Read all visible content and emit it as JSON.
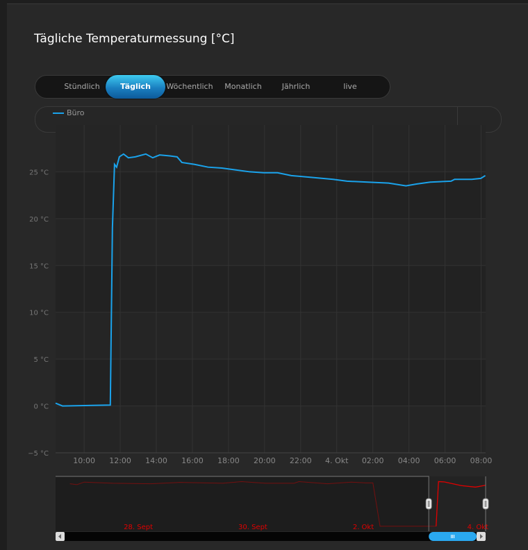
{
  "title": "Tägliche Temperaturmessung [°C]",
  "range_buttons": [
    {
      "label": "Stündlich"
    },
    {
      "label": "Täglich",
      "selected": true
    },
    {
      "label": "Wöchentlich"
    },
    {
      "label": "Monatlich"
    },
    {
      "label": "Jährlich"
    },
    {
      "label": "live"
    }
  ],
  "colors": {
    "series": "#1aa3ec",
    "navigator": "#e00000",
    "accent": "#1a7fc0"
  },
  "chart_data": {
    "type": "line",
    "title": "Tägliche Temperaturmessung [°C]",
    "legend": {
      "entries": [
        "Büro"
      ],
      "placement": "top-left"
    },
    "grid": true,
    "x_ticks": [
      "10:00",
      "12:00",
      "14:00",
      "16:00",
      "18:00",
      "20:00",
      "22:00",
      "4. Okt",
      "02:00",
      "04:00",
      "06:00",
      "08:00"
    ],
    "y_ticks": [
      "−5 °C",
      "0 °C",
      "5 °C",
      "10 °C",
      "15 °C",
      "20 °C",
      "25 °C"
    ],
    "ylim": [
      -5,
      30
    ],
    "xlim": [
      "3. Okt 08:25",
      "4. Okt 08:15"
    ],
    "series": [
      {
        "name": "Büro",
        "points": [
          [
            "3. Okt 08:25",
            0.3
          ],
          [
            "3. Okt 08:48",
            0.0
          ],
          [
            "3. Okt 11:27",
            0.1
          ],
          [
            "3. Okt 11:34",
            19
          ],
          [
            "3. Okt 11:41",
            25.8
          ],
          [
            "3. Okt 11:48",
            25.5
          ],
          [
            "3. Okt 11:57",
            26.6
          ],
          [
            "3. Okt 12:11",
            26.9
          ],
          [
            "3. Okt 12:27",
            26.5
          ],
          [
            "3. Okt 12:50",
            26.6
          ],
          [
            "3. Okt 13:25",
            26.9
          ],
          [
            "3. Okt 13:48",
            26.5
          ],
          [
            "3. Okt 14:11",
            26.8
          ],
          [
            "3. Okt 14:45",
            26.7
          ],
          [
            "3. Okt 15:09",
            26.6
          ],
          [
            "3. Okt 15:25",
            26.0
          ],
          [
            "3. Okt 16:06",
            25.8
          ],
          [
            "3. Okt 16:52",
            25.5
          ],
          [
            "3. Okt 17:38",
            25.4
          ],
          [
            "3. Okt 18:25",
            25.2
          ],
          [
            "3. Okt 19:11",
            25.0
          ],
          [
            "3. Okt 19:57",
            24.9
          ],
          [
            "3. Okt 20:43",
            24.9
          ],
          [
            "3. Okt 21:29",
            24.6
          ],
          [
            "3. Okt 22:38",
            24.4
          ],
          [
            "3. Okt 23:48",
            24.2
          ],
          [
            "4. Okt 00:34",
            24.0
          ],
          [
            "4. Okt 01:43",
            23.9
          ],
          [
            "4. Okt 02:52",
            23.8
          ],
          [
            "4. Okt 03:50",
            23.5
          ],
          [
            "4. Okt 04:25",
            23.7
          ],
          [
            "4. Okt 05:11",
            23.9
          ],
          [
            "4. Okt 06:20",
            24.0
          ],
          [
            "4. Okt 06:32",
            24.2
          ],
          [
            "4. Okt 07:29",
            24.2
          ],
          [
            "4. Okt 07:59",
            24.3
          ],
          [
            "4. Okt 08:14",
            24.6
          ]
        ]
      }
    ],
    "navigator": {
      "x_ticks": [
        "28. Sept",
        "30. Sept",
        "2. Okt",
        "4. Okt"
      ],
      "points": [
        [
          "27. Sept 02:00",
          25.5
        ],
        [
          "27. Sept 05:00",
          25.0
        ],
        [
          "27. Sept 08:00",
          26.5
        ],
        [
          "27. Sept 20:00",
          25.8
        ],
        [
          "28. Sept 12:00",
          25.5
        ],
        [
          "29. Sept 00:00",
          26.3
        ],
        [
          "29. Sept 18:00",
          25.8
        ],
        [
          "30. Sept 02:00",
          26.8
        ],
        [
          "30. Sept 12:00",
          25.8
        ],
        [
          "1. Okt 00:00",
          25.8
        ],
        [
          "1. Okt 02:00",
          26.8
        ],
        [
          "1. Okt 14:00",
          25.5
        ],
        [
          "2. Okt 00:00",
          26.5
        ],
        [
          "2. Okt 06:00",
          26.0
        ],
        [
          "2. Okt 09:00",
          26.0
        ],
        [
          "2. Okt 12:00",
          0.1
        ],
        [
          "3. Okt 11:30",
          0.1
        ],
        [
          "3. Okt 12:30",
          26.8
        ],
        [
          "3. Okt 15:00",
          26.6
        ],
        [
          "3. Okt 22:00",
          24.4
        ],
        [
          "4. Okt 04:00",
          23.5
        ],
        [
          "4. Okt 08:14",
          24.6
        ]
      ],
      "selected_range": [
        "3. Okt 08:25",
        "4. Okt 08:15"
      ]
    }
  }
}
